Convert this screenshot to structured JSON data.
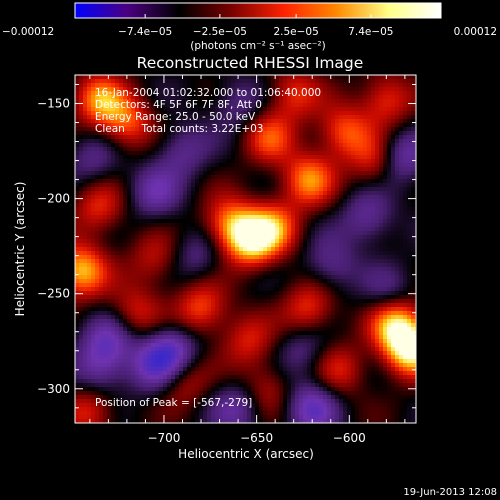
{
  "colorbar": {
    "ticks": [
      "−0.00012",
      "−7.4e−05",
      "−2.5e−05",
      "2.5e−05",
      "7.4e−05",
      "0.00012"
    ],
    "tick_values": [
      -0.00012,
      -7.4e-05,
      -2.5e-05,
      2.5e-05,
      7.4e-05,
      0.00012
    ],
    "unit_label": "(photons cm⁻² s⁻¹ asec⁻²)",
    "colors": [
      "#0000ff",
      "#4b0082",
      "#000000",
      "#7a0000",
      "#ff2200",
      "#ff8800",
      "#ffff88",
      "#ffffff"
    ]
  },
  "chart_data": {
    "type": "heatmap",
    "title": "Reconstructed RHESSI Image",
    "xlabel": "Heliocentric X (arcsec)",
    "ylabel": "Heliocentric Y (arcsec)",
    "xlim": [
      -748,
      -564
    ],
    "ylim": [
      -318,
      -135
    ],
    "xticks": [
      -700,
      -650,
      -600
    ],
    "yticks": [
      -150,
      -200,
      -250,
      -300
    ],
    "info": [
      "16-Jan-2004 01:02:32.000 to 01:06:40.000",
      "Detectors: 4F 5F 6F 7F 8F, Att 0",
      "Energy Range: 25.0 - 50.0 keV",
      "Clean     Total counts: 3.22E+03"
    ],
    "peak_label": "Position of Peak = [-567,-279]",
    "peak": [
      -567,
      -279
    ],
    "blobs": [
      {
        "x": -567,
        "y": -279,
        "v": 1.0
      },
      {
        "x": -575,
        "y": -265,
        "v": 0.75
      },
      {
        "x": -653,
        "y": -222,
        "v": 0.85
      },
      {
        "x": -665,
        "y": -213,
        "v": 0.6
      },
      {
        "x": -640,
        "y": -215,
        "v": 0.55
      },
      {
        "x": -622,
        "y": -190,
        "v": 0.65
      },
      {
        "x": -603,
        "y": -165,
        "v": 0.55
      },
      {
        "x": -585,
        "y": -180,
        "v": 0.5
      },
      {
        "x": -643,
        "y": -168,
        "v": 0.5
      },
      {
        "x": -630,
        "y": -145,
        "v": 0.45
      },
      {
        "x": -720,
        "y": -160,
        "v": 0.55
      },
      {
        "x": -735,
        "y": -148,
        "v": 0.65
      },
      {
        "x": -745,
        "y": -238,
        "v": 0.8
      },
      {
        "x": -735,
        "y": -205,
        "v": 0.45
      },
      {
        "x": -705,
        "y": -232,
        "v": 0.35
      },
      {
        "x": -715,
        "y": -260,
        "v": 0.4
      },
      {
        "x": -680,
        "y": -258,
        "v": 0.55
      },
      {
        "x": -655,
        "y": -275,
        "v": 0.4
      },
      {
        "x": -622,
        "y": -258,
        "v": 0.5
      },
      {
        "x": -605,
        "y": -290,
        "v": 0.4
      },
      {
        "x": -645,
        "y": -300,
        "v": 0.35
      },
      {
        "x": -690,
        "y": -295,
        "v": 0.4
      },
      {
        "x": -740,
        "y": -312,
        "v": 0.45
      },
      {
        "x": -580,
        "y": -148,
        "v": 0.5
      },
      {
        "x": -705,
        "y": -197,
        "v": -0.4
      },
      {
        "x": -690,
        "y": -175,
        "v": -0.35
      },
      {
        "x": -682,
        "y": -230,
        "v": -0.3
      },
      {
        "x": -695,
        "y": -280,
        "v": -0.55
      },
      {
        "x": -705,
        "y": -288,
        "v": -0.5
      },
      {
        "x": -730,
        "y": -275,
        "v": -0.45
      },
      {
        "x": -573,
        "y": -178,
        "v": -0.55
      },
      {
        "x": -590,
        "y": -210,
        "v": -0.4
      },
      {
        "x": -610,
        "y": -235,
        "v": -0.35
      },
      {
        "x": -620,
        "y": -310,
        "v": -0.55
      },
      {
        "x": -660,
        "y": -150,
        "v": -0.3
      },
      {
        "x": -660,
        "y": -310,
        "v": -0.4
      },
      {
        "x": -735,
        "y": -290,
        "v": -0.4
      },
      {
        "x": -578,
        "y": -250,
        "v": -0.3
      },
      {
        "x": -738,
        "y": -180,
        "v": -0.3
      },
      {
        "x": -625,
        "y": -280,
        "v": -0.3
      }
    ]
  },
  "footer": {
    "timestamp": "19-Jun-2013 12:08"
  }
}
